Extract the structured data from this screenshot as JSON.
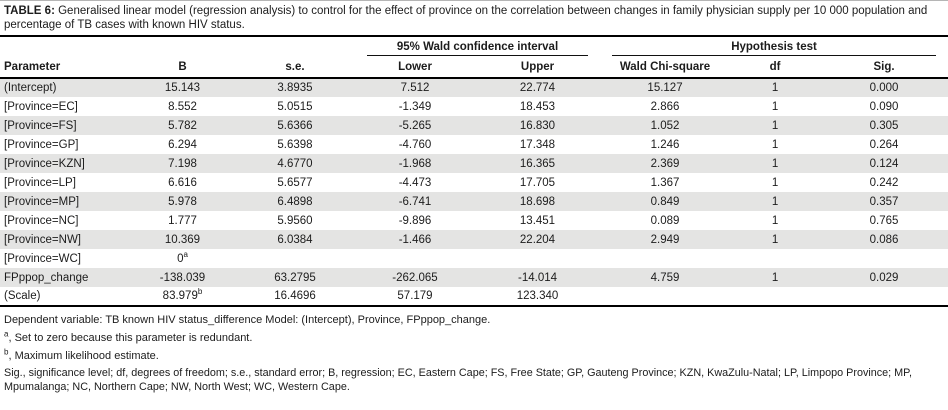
{
  "title": {
    "label": "TABLE 6:",
    "text": " Generalised linear model (regression analysis) to control for the effect of province on the correlation between changes in family physician supply per 10 000 population and percentage of TB cases with known HIV status."
  },
  "table": {
    "group_headers": {
      "confidence_interval": "95% Wald confidence interval",
      "hypothesis_test": "Hypothesis test"
    },
    "columns": [
      "Parameter",
      "B",
      "s.e.",
      "Lower",
      "Upper",
      "Wald Chi-square",
      "df",
      "Sig."
    ],
    "rows": [
      {
        "cells": [
          "(Intercept)",
          "15.143",
          "3.8935",
          "7.512",
          "22.774",
          "15.127",
          "1",
          "0.000"
        ]
      },
      {
        "cells": [
          "[Province=EC]",
          "8.552",
          "5.0515",
          "-1.349",
          "18.453",
          "2.866",
          "1",
          "0.090"
        ]
      },
      {
        "cells": [
          "[Province=FS]",
          "5.782",
          "5.6366",
          "-5.265",
          "16.830",
          "1.052",
          "1",
          "0.305"
        ]
      },
      {
        "cells": [
          "[Province=GP]",
          "6.294",
          "5.6398",
          "-4.760",
          "17.348",
          "1.246",
          "1",
          "0.264"
        ]
      },
      {
        "cells": [
          "[Province=KZN]",
          "7.198",
          "4.6770",
          "-1.968",
          "16.365",
          "2.369",
          "1",
          "0.124"
        ]
      },
      {
        "cells": [
          "[Province=LP]",
          "6.616",
          "5.6577",
          "-4.473",
          "17.705",
          "1.367",
          "1",
          "0.242"
        ]
      },
      {
        "cells": [
          "[Province=MP]",
          "5.978",
          "6.4898",
          "-6.741",
          "18.698",
          "0.849",
          "1",
          "0.357"
        ]
      },
      {
        "cells": [
          "[Province=NC]",
          "1.777",
          "5.9560",
          "-9.896",
          "13.451",
          "0.089",
          "1",
          "0.765"
        ]
      },
      {
        "cells": [
          "[Province=NW]",
          "10.369",
          "6.0384",
          "-1.466",
          "22.204",
          "2.949",
          "1",
          "0.086"
        ]
      },
      {
        "cells": [
          "[Province=WC]",
          "0^a",
          "",
          "",
          "",
          "",
          "",
          ""
        ]
      },
      {
        "cells": [
          "FPppop_change",
          "-138.039",
          "63.2795",
          "-262.065",
          "-14.014",
          "4.759",
          "1",
          "0.029"
        ]
      },
      {
        "cells": [
          "(Scale)",
          "83.979^b",
          "16.4696",
          "57.179",
          "123.340",
          "",
          "",
          ""
        ]
      }
    ]
  },
  "footnotes": {
    "dependent": "Dependent variable: TB known HIV status_difference Model: (Intercept), Province, FPppop_change.",
    "note_a_sup": "a",
    "note_a": ", Set to zero because this parameter is redundant.",
    "note_b_sup": "b",
    "note_b": ", Maximum likelihood estimate.",
    "abbreviations": "Sig., significance level; df, degrees of freedom; s.e., standard error; B, regression; EC, Eastern Cape; FS, Free State; GP, Gauteng Province; KZN, KwaZulu-Natal; LP, Limpopo Province; MP, Mpumalanga; NC, Northern Cape; NW, North West; WC, Western Cape."
  },
  "colors": {
    "row_shade": "#e4e4e3",
    "rule": "#000000"
  }
}
